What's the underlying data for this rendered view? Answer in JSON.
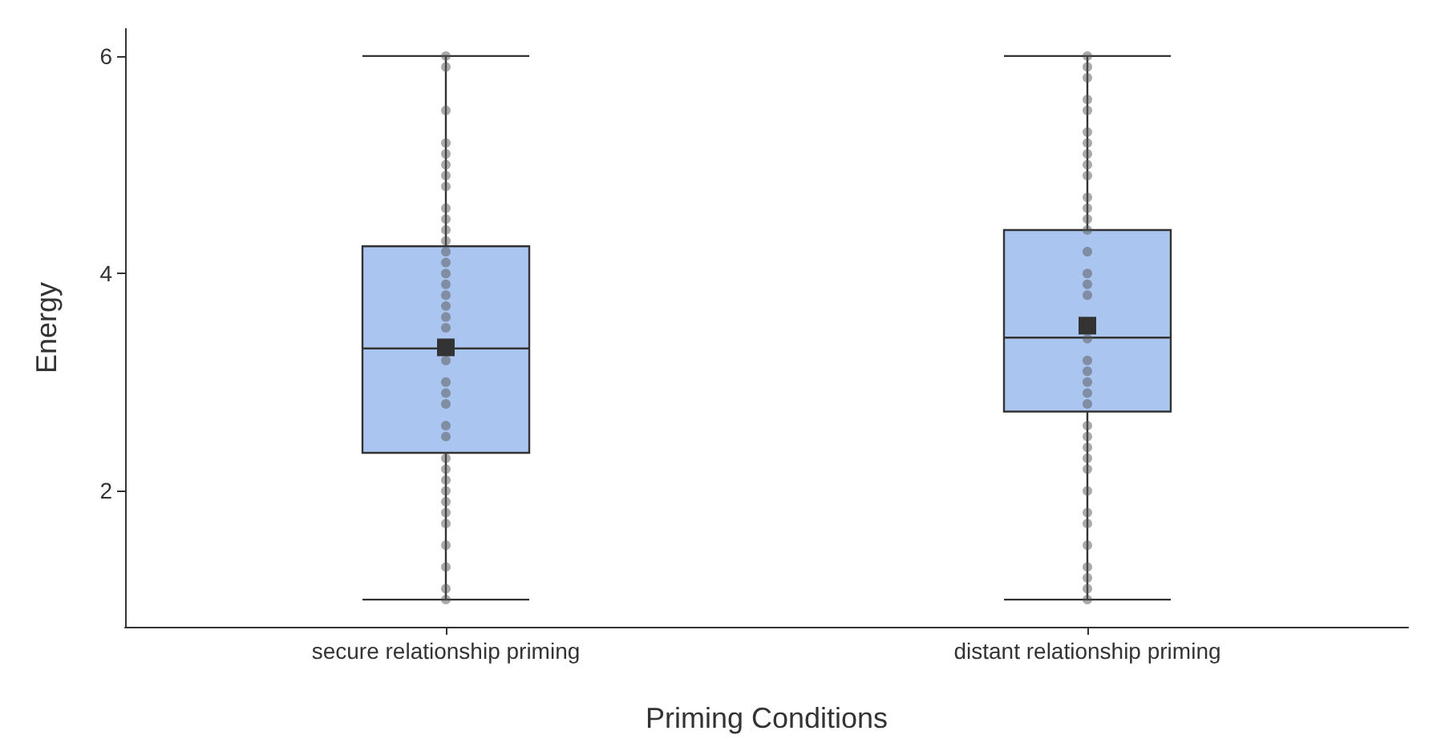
{
  "chart_data": {
    "type": "box",
    "xlabel": "Priming Conditions",
    "ylabel": "Energy",
    "categories": [
      "secure relationship priming",
      "distant relationship priming"
    ],
    "color": "#aac5f0",
    "boxes": [
      {
        "low": 1,
        "q1": 2.35,
        "median": 3.31,
        "q3": 4.25,
        "high": 6,
        "mean": 3.32
      },
      {
        "low": 1,
        "q1": 2.73,
        "median": 3.41,
        "q3": 4.4,
        "high": 6,
        "mean": 3.52
      }
    ],
    "series": [
      {
        "type": "scatter",
        "color": "#555555",
        "x": [
          "secure relationship priming",
          "secure relationship priming",
          "secure relationship priming",
          "secure relationship priming",
          "secure relationship priming",
          "secure relationship priming",
          "secure relationship priming",
          "secure relationship priming",
          "secure relationship priming",
          "secure relationship priming",
          "secure relationship priming",
          "secure relationship priming",
          "secure relationship priming",
          "secure relationship priming",
          "secure relationship priming",
          "secure relationship priming",
          "secure relationship priming",
          "secure relationship priming",
          "secure relationship priming",
          "secure relationship priming",
          "secure relationship priming",
          "secure relationship priming",
          "secure relationship priming",
          "secure relationship priming",
          "secure relationship priming",
          "secure relationship priming",
          "secure relationship priming",
          "secure relationship priming",
          "secure relationship priming",
          "secure relationship priming",
          "secure relationship priming",
          "secure relationship priming",
          "secure relationship priming",
          "secure relationship priming",
          "secure relationship priming",
          "secure relationship priming",
          "secure relationship priming"
        ],
        "values": [
          6,
          5.9,
          5.5,
          5.2,
          5.1,
          5.0,
          4.9,
          4.8,
          4.6,
          4.5,
          4.4,
          4.3,
          4.2,
          4.0,
          3.9,
          3.8,
          3.7,
          3.5,
          3.2,
          3.0,
          2.9,
          2.8,
          2.6,
          2.5,
          2.3,
          2.2,
          2.1,
          2.0,
          1.9,
          1.8,
          1.7,
          1.5,
          1.3,
          1.1,
          1.0,
          3.6,
          4.1
        ]
      },
      {
        "type": "scatter",
        "color": "#555555",
        "x": [
          "distant relationship priming",
          "distant relationship priming",
          "distant relationship priming",
          "distant relationship priming",
          "distant relationship priming",
          "distant relationship priming",
          "distant relationship priming",
          "distant relationship priming",
          "distant relationship priming",
          "distant relationship priming",
          "distant relationship priming",
          "distant relationship priming",
          "distant relationship priming",
          "distant relationship priming",
          "distant relationship priming",
          "distant relationship priming",
          "distant relationship priming",
          "distant relationship priming",
          "distant relationship priming",
          "distant relationship priming",
          "distant relationship priming",
          "distant relationship priming",
          "distant relationship priming",
          "distant relationship priming",
          "distant relationship priming",
          "distant relationship priming",
          "distant relationship priming",
          "distant relationship priming",
          "distant relationship priming",
          "distant relationship priming",
          "distant relationship priming",
          "distant relationship priming",
          "distant relationship priming",
          "distant relationship priming",
          "distant relationship priming",
          "distant relationship priming",
          "distant relationship priming"
        ],
        "values": [
          6,
          5.9,
          5.8,
          5.6,
          5.5,
          5.3,
          5.2,
          5.1,
          5.0,
          4.9,
          4.7,
          4.6,
          4.5,
          4.4,
          4.2,
          4.0,
          3.9,
          3.8,
          3.4,
          3.2,
          3.1,
          3.0,
          2.9,
          2.8,
          2.6,
          2.5,
          2.4,
          2.3,
          2.2,
          2.0,
          1.8,
          1.7,
          1.5,
          1.3,
          1.2,
          1.1,
          1.0
        ]
      }
    ],
    "ylim": [
      0.75,
      6.25
    ],
    "yticks": [
      2,
      4,
      6
    ],
    "grid": false,
    "marker": "circle"
  }
}
